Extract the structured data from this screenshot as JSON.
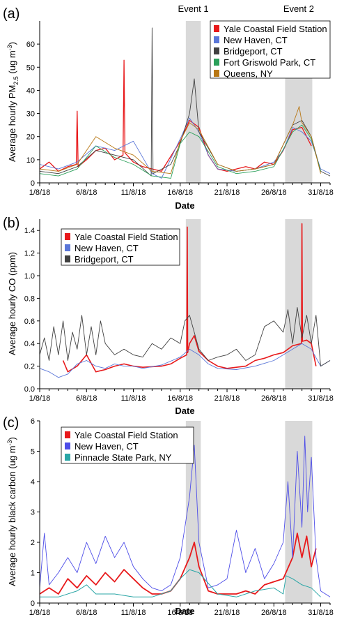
{
  "chart_data": [
    {
      "type": "line",
      "panel_label": "(a)",
      "ylabel": "Average hourly PM2.5 (ug m-3)",
      "ylabel_parts": {
        "main": "Average hourly PM",
        "sub": "2.5",
        "unit": " (ug m",
        "sup": "-3",
        "close": ")"
      },
      "xlabel": "Date",
      "xlim": [
        1,
        32
      ],
      "ylim": [
        0,
        70
      ],
      "y_ticks": [
        0,
        10,
        20,
        30,
        40,
        50,
        60
      ],
      "x_ticks": [
        {
          "value": 1,
          "label": "1/8/18"
        },
        {
          "value": 6,
          "label": "6/8/18"
        },
        {
          "value": 11,
          "label": "11/8/18"
        },
        {
          "value": 16,
          "label": "16/8/18"
        },
        {
          "value": 21,
          "label": "21/8/18"
        },
        {
          "value": 26,
          "label": "26/8/18"
        },
        {
          "value": 31,
          "label": "31/8/18"
        }
      ],
      "events": [
        {
          "label": "Event 1",
          "start": 16.6,
          "end": 18.2
        },
        {
          "label": "Event 2",
          "start": 27.2,
          "end": 30.1
        }
      ],
      "legend_position": "top-right",
      "series": [
        {
          "name": "Yale Coastal Field Station",
          "color": "#e8191b",
          "width": 1.3,
          "x": [
            1,
            2,
            3,
            4,
            4.9,
            5.0,
            5.1,
            6,
            7,
            8,
            9,
            9.9,
            10.0,
            10.1,
            11,
            12,
            14,
            16,
            17,
            18,
            19,
            20,
            21,
            22,
            23,
            24,
            25,
            26,
            27,
            28,
            29,
            30
          ],
          "values": [
            6,
            9,
            5,
            7,
            8,
            31,
            7,
            10,
            14,
            15,
            10,
            12,
            53,
            13,
            9,
            7,
            5,
            18,
            27,
            24,
            12,
            6,
            5,
            6,
            7,
            6,
            9,
            8,
            14,
            23,
            24,
            16
          ]
        },
        {
          "name": "New Haven, CT",
          "color": "#5a76d8",
          "width": 0.9,
          "x": [
            1,
            3,
            5,
            7,
            9,
            11,
            13,
            14,
            16,
            17,
            18,
            19,
            20,
            22,
            24,
            26,
            27,
            28,
            29,
            30,
            31,
            32
          ],
          "values": [
            8,
            6,
            9,
            16,
            14,
            18,
            4,
            2,
            19,
            28,
            22,
            12,
            6,
            5,
            6,
            9,
            14,
            24,
            22,
            18,
            6,
            4
          ]
        },
        {
          "name": "Bridgeport, CT",
          "color": "#404040",
          "width": 0.9,
          "x": [
            1,
            3,
            5,
            7,
            9,
            11,
            12.9,
            13.0,
            13.1,
            15,
            16,
            17,
            17.5,
            18,
            20,
            22,
            24,
            26,
            28,
            29,
            30,
            31,
            32
          ],
          "values": [
            5,
            4,
            7,
            14,
            12,
            10,
            3,
            67,
            4,
            8,
            17,
            30,
            45,
            22,
            8,
            5,
            6,
            8,
            25,
            27,
            20,
            5,
            3
          ]
        },
        {
          "name": "Fort Griswold Park, CT",
          "color": "#2ba05a",
          "width": 0.9,
          "x": [
            1,
            3,
            5,
            7,
            9,
            11,
            13,
            15,
            16,
            17,
            18,
            20,
            22,
            24,
            26,
            28,
            29,
            30,
            31
          ],
          "values": [
            4,
            3,
            6,
            16,
            11,
            8,
            3,
            2,
            17,
            22,
            20,
            7,
            4,
            5,
            7,
            22,
            25,
            19,
            5
          ]
        },
        {
          "name": "Queens, NY",
          "color": "#b87714",
          "width": 0.9,
          "x": [
            1,
            3,
            5,
            7,
            9,
            11,
            13,
            15,
            16,
            17,
            18,
            20,
            22,
            24,
            26,
            28,
            28.7,
            29,
            30,
            31
          ],
          "values": [
            6,
            5,
            8,
            20,
            15,
            12,
            5,
            4,
            18,
            26,
            23,
            8,
            5,
            6,
            8,
            25,
            33,
            26,
            20,
            4
          ]
        }
      ]
    },
    {
      "type": "line",
      "panel_label": "(b)",
      "ylabel": "Average hourly CO (ppm)",
      "xlabel": "Date",
      "xlim": [
        1,
        32
      ],
      "ylim": [
        0,
        1.5
      ],
      "y_ticks": [
        0.0,
        0.2,
        0.4,
        0.6,
        0.8,
        1.0,
        1.2,
        1.4
      ],
      "y_tick_labels": [
        "0.0",
        "0.2",
        "0.4",
        "0.6",
        "0.8",
        "1.0",
        "1.2",
        "1.4"
      ],
      "x_ticks": [
        {
          "value": 1,
          "label": "1/8/18"
        },
        {
          "value": 6,
          "label": "6/8/18"
        },
        {
          "value": 11,
          "label": "11/8/18"
        },
        {
          "value": 16,
          "label": "16/8/18"
        },
        {
          "value": 21,
          "label": "21/8/18"
        },
        {
          "value": 26,
          "label": "26/8/18"
        },
        {
          "value": 31,
          "label": "31/8/18"
        }
      ],
      "events": [
        {
          "start": 16.6,
          "end": 18.2
        },
        {
          "start": 27.2,
          "end": 30.1
        }
      ],
      "legend_position": "top-left",
      "series": [
        {
          "name": "Yale Coastal Field Station",
          "color": "#e8191b",
          "width": 1.6,
          "x": [
            3.5,
            4,
            5,
            6,
            7,
            8,
            9,
            10,
            11,
            12,
            14,
            15,
            16,
            16.7,
            16.75,
            16.8,
            17,
            17.5,
            18,
            19,
            20,
            21,
            22,
            23,
            24,
            25,
            26,
            27,
            28,
            28.95,
            29.0,
            29.05,
            29.5,
            30,
            30.5
          ],
          "values": [
            0.25,
            0.15,
            0.2,
            0.3,
            0.15,
            0.17,
            0.2,
            0.22,
            0.2,
            0.19,
            0.2,
            0.22,
            0.27,
            0.3,
            1.43,
            0.32,
            0.4,
            0.47,
            0.33,
            0.25,
            0.2,
            0.18,
            0.19,
            0.2,
            0.25,
            0.27,
            0.3,
            0.32,
            0.38,
            0.4,
            1.46,
            0.42,
            0.43,
            0.4,
            0.2
          ]
        },
        {
          "name": "New Haven, CT",
          "color": "#5a76d8",
          "width": 0.9,
          "x": [
            1,
            2,
            3,
            4,
            5,
            6,
            7,
            8,
            9,
            10,
            11,
            12,
            14,
            16,
            17,
            18,
            19,
            20,
            22,
            24,
            26,
            28,
            29,
            30,
            31,
            32
          ],
          "values": [
            0.18,
            0.15,
            0.1,
            0.13,
            0.22,
            0.25,
            0.2,
            0.18,
            0.22,
            0.2,
            0.2,
            0.18,
            0.21,
            0.28,
            0.35,
            0.3,
            0.22,
            0.18,
            0.17,
            0.2,
            0.25,
            0.35,
            0.4,
            0.35,
            0.2,
            0.25
          ]
        },
        {
          "name": "Bridgeport, CT",
          "color": "#404040",
          "width": 0.9,
          "x": [
            1,
            1.5,
            2,
            2.5,
            3,
            3.5,
            4,
            4.5,
            5,
            5.5,
            6,
            6.5,
            7,
            7.5,
            8,
            9,
            10,
            11,
            12,
            13,
            14,
            15,
            16,
            16.5,
            17,
            18,
            19,
            20,
            21,
            22,
            23,
            24,
            25,
            26,
            27,
            27.5,
            28,
            28.5,
            29,
            29.5,
            30,
            30.5,
            31,
            32
          ],
          "values": [
            0.3,
            0.45,
            0.25,
            0.55,
            0.3,
            0.6,
            0.25,
            0.5,
            0.35,
            0.65,
            0.3,
            0.55,
            0.3,
            0.6,
            0.4,
            0.3,
            0.35,
            0.3,
            0.28,
            0.4,
            0.35,
            0.45,
            0.4,
            0.6,
            0.65,
            0.35,
            0.25,
            0.28,
            0.3,
            0.35,
            0.25,
            0.3,
            0.55,
            0.6,
            0.5,
            0.7,
            0.4,
            0.72,
            0.45,
            0.65,
            0.4,
            0.65,
            0.2,
            0.25
          ]
        }
      ]
    },
    {
      "type": "line",
      "panel_label": "(c)",
      "ylabel": "Average hourly black carbon (ug m-3)",
      "ylabel_parts": {
        "main": "Average hourly black carbon (ug m",
        "sup": "-3",
        "close": ")"
      },
      "xlabel": "Date",
      "xlim": [
        1,
        32
      ],
      "ylim": [
        0,
        6
      ],
      "y_ticks": [
        0,
        1,
        2,
        3,
        4,
        5,
        6
      ],
      "x_ticks": [
        {
          "value": 1,
          "label": "1/8/18"
        },
        {
          "value": 6,
          "label": "6/8/18"
        },
        {
          "value": 11,
          "label": "11/8/18"
        },
        {
          "value": 16,
          "label": "16/8/18"
        },
        {
          "value": 21,
          "label": "21/8/18"
        },
        {
          "value": 26,
          "label": "26/8/18"
        },
        {
          "value": 31,
          "label": "31/8/18"
        }
      ],
      "events": [
        {
          "start": 16.6,
          "end": 18.2
        },
        {
          "start": 27.2,
          "end": 30.1
        }
      ],
      "legend_position": "top-left",
      "series": [
        {
          "name": "Yale Coastal Field Station",
          "color": "#e8191b",
          "width": 1.8,
          "x": [
            1,
            2,
            3,
            4,
            5,
            6,
            7,
            8,
            9,
            10,
            11,
            12,
            13,
            14,
            15,
            16,
            17,
            17.5,
            18,
            19,
            20,
            21,
            22,
            23,
            24,
            25,
            26,
            27,
            28,
            28.5,
            29,
            29.5,
            30,
            30.5
          ],
          "values": [
            0.3,
            0.5,
            0.3,
            0.8,
            0.5,
            0.9,
            0.6,
            1.0,
            0.7,
            1.1,
            0.8,
            0.5,
            0.3,
            0.3,
            0.4,
            0.8,
            1.5,
            2.0,
            1.2,
            0.4,
            0.3,
            0.3,
            0.3,
            0.4,
            0.3,
            0.6,
            0.7,
            0.8,
            1.5,
            2.3,
            1.5,
            2.2,
            1.2,
            1.8
          ]
        },
        {
          "name": "New Haven, CT",
          "color": "#4d4de8",
          "width": 0.9,
          "x": [
            1,
            1.5,
            2,
            3,
            4,
            5,
            6,
            7,
            8,
            9,
            10,
            11,
            12,
            13,
            14,
            15,
            16,
            17,
            17.5,
            18,
            19,
            20,
            21,
            22,
            23,
            24,
            25,
            26,
            27,
            27.5,
            28,
            28.5,
            29,
            29.3,
            29.6,
            30,
            30.5,
            31,
            32
          ],
          "values": [
            0.5,
            2.3,
            0.6,
            1.0,
            1.5,
            1.0,
            2.0,
            1.3,
            2.2,
            1.5,
            2.0,
            1.2,
            0.8,
            0.5,
            0.4,
            0.6,
            1.5,
            3.5,
            5.2,
            2.0,
            0.5,
            0.6,
            0.8,
            2.4,
            1.0,
            1.8,
            0.8,
            1.3,
            2.0,
            4.0,
            1.5,
            5.0,
            2.5,
            5.5,
            3.0,
            4.8,
            1.5,
            0.4,
            0.2
          ]
        },
        {
          "name": "Pinnacle State Park, NY",
          "color": "#2aa6a6",
          "width": 1.0,
          "x": [
            1,
            3,
            5,
            6,
            7,
            9,
            11,
            13,
            15,
            16,
            17,
            18,
            20,
            22,
            24,
            26,
            27,
            27.3,
            28,
            29,
            30,
            31
          ],
          "values": [
            0.2,
            0.2,
            0.4,
            0.6,
            0.3,
            0.3,
            0.2,
            0.2,
            0.4,
            0.8,
            1.1,
            1.0,
            0.3,
            0.2,
            0.4,
            0.5,
            0.3,
            0.9,
            0.8,
            0.6,
            0.5,
            0.2
          ]
        }
      ]
    }
  ]
}
